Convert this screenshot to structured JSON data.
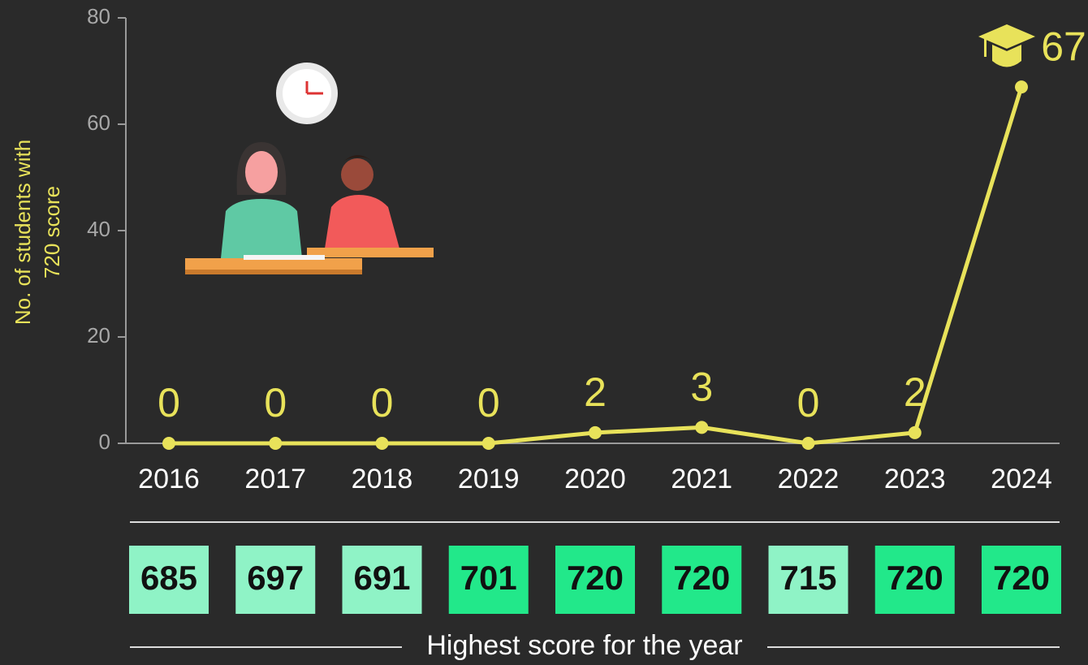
{
  "chart_data": {
    "type": "line",
    "ylabel": [
      "No. of students with",
      "720 score"
    ],
    "categories": [
      "2016",
      "2017",
      "2018",
      "2019",
      "2020",
      "2021",
      "2022",
      "2023",
      "2024"
    ],
    "values": [
      0,
      0,
      0,
      0,
      2,
      3,
      0,
      2,
      67
    ],
    "color": "#e8e25a",
    "ylim": [
      0,
      80
    ],
    "yticks": [
      0,
      20,
      40,
      60,
      80
    ],
    "scores": [
      "685",
      "697",
      "691",
      "701",
      "720",
      "720",
      "715",
      "720",
      "720"
    ],
    "score_colors": [
      "#8ff3c6",
      "#8ff3c6",
      "#8ff3c6",
      "#22e88a",
      "#22e88a",
      "#22e88a",
      "#8ff3c6",
      "#22e88a",
      "#22e88a"
    ],
    "scores_label": "Highest score for the year"
  }
}
